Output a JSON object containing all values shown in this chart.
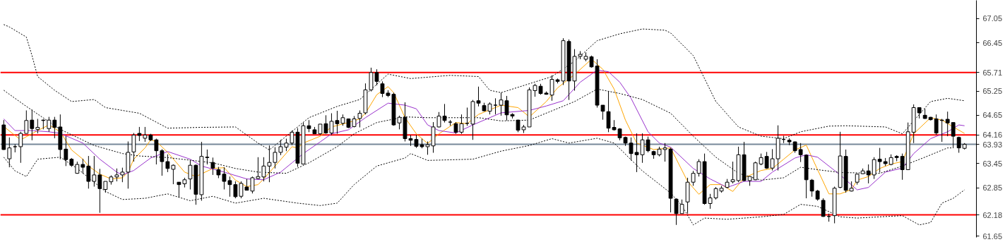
{
  "chart_data": {
    "type": "candlestick",
    "color": "#000000",
    "categories": [
      null,
      null,
      null,
      null,
      null,
      null,
      null,
      null,
      null,
      null,
      null,
      null,
      null,
      null,
      null,
      null,
      null,
      null,
      null,
      null,
      null,
      null,
      null,
      null,
      null,
      null,
      null,
      null,
      null,
      null,
      null,
      null,
      null,
      null,
      null,
      null,
      null,
      null,
      null,
      null,
      null,
      null,
      null,
      null,
      null,
      null,
      null,
      null,
      null,
      null,
      null,
      null,
      null,
      null,
      null,
      null,
      null,
      null,
      null,
      null,
      null,
      null,
      null,
      null,
      null,
      null,
      null,
      null,
      null,
      null,
      null,
      null,
      null,
      null,
      null,
      null,
      null,
      null,
      null,
      null,
      null,
      null,
      null,
      null,
      null,
      null,
      null,
      null,
      null,
      null,
      null,
      null,
      null,
      null,
      null,
      null,
      null,
      null,
      null,
      null,
      null,
      null,
      null,
      null,
      null,
      null,
      null,
      null,
      null,
      null,
      null,
      null,
      null,
      null,
      null,
      null,
      null,
      null,
      null,
      null,
      null,
      null,
      null,
      null,
      null,
      null,
      null,
      null,
      null,
      null,
      null,
      null,
      null,
      null,
      null,
      null,
      null,
      null,
      null,
      null,
      null,
      null,
      null,
      null,
      null,
      null,
      null,
      null,
      null,
      null,
      null,
      null,
      null,
      null,
      null,
      null,
      null,
      null,
      null,
      null,
      null,
      null,
      null,
      null,
      null,
      null,
      null,
      null,
      null,
      null,
      null
    ],
    "ohlc": [
      [
        64.41,
        64.53,
        63.79,
        63.8
      ],
      [
        63.57,
        64.1,
        63.36,
        63.84
      ],
      [
        63.87,
        63.93,
        63.73,
        63.87
      ],
      [
        63.87,
        64.24,
        63.47,
        64.2
      ],
      [
        64.2,
        64.77,
        64.2,
        64.52
      ],
      [
        64.53,
        64.79,
        64.03,
        64.32
      ],
      [
        64.3,
        64.56,
        64.2,
        64.35
      ],
      [
        64.53,
        64.55,
        64.3,
        64.52
      ],
      [
        64.32,
        64.61,
        64.24,
        64.53
      ],
      [
        64.53,
        64.61,
        64.08,
        64.35
      ],
      [
        64.36,
        64.67,
        63.56,
        63.8
      ],
      [
        63.81,
        64.13,
        63.39,
        63.55
      ],
      [
        63.56,
        63.59,
        63.37,
        63.41
      ],
      [
        63.21,
        63.5,
        63.2,
        63.43
      ],
      [
        63.43,
        63.57,
        63.2,
        63.36
      ],
      [
        63.39,
        63.64,
        62.83,
        63.01
      ],
      [
        63.01,
        63.64,
        62.88,
        63.17
      ],
      [
        63.17,
        63.32,
        62.23,
        62.83
      ],
      [
        62.81,
        63.01,
        62.73,
        63.01
      ],
      [
        63.0,
        63.16,
        62.93,
        63.12
      ],
      [
        63.12,
        63.33,
        63.01,
        63.17
      ],
      [
        63.17,
        63.35,
        62.99,
        63.24
      ],
      [
        63.24,
        64.0,
        62.83,
        63.73
      ],
      [
        63.74,
        64.21,
        63.5,
        64.16
      ],
      [
        64.2,
        64.36,
        64.01,
        64.15
      ],
      [
        64.08,
        64.36,
        63.99,
        64.16
      ],
      [
        64.16,
        64.19,
        64.01,
        64.04
      ],
      [
        64.04,
        64.07,
        63.43,
        63.77
      ],
      [
        63.77,
        63.81,
        63.15,
        63.5
      ],
      [
        63.5,
        63.68,
        63.24,
        63.33
      ],
      [
        63.31,
        63.43,
        62.94,
        63.41
      ],
      [
        62.99,
        62.99,
        62.61,
        62.93
      ],
      [
        62.95,
        63.1,
        62.86,
        63.05
      ],
      [
        63.07,
        63.53,
        62.81,
        63.41
      ],
      [
        63.41,
        63.43,
        62.43,
        62.69
      ],
      [
        62.68,
        63.99,
        62.53,
        63.63
      ],
      [
        63.61,
        63.8,
        63.43,
        63.6
      ],
      [
        63.48,
        63.6,
        63.17,
        63.34
      ],
      [
        63.3,
        63.37,
        63.09,
        63.17
      ],
      [
        63.19,
        63.36,
        62.81,
        63.01
      ],
      [
        63.03,
        63.13,
        62.63,
        62.93
      ],
      [
        62.93,
        63.01,
        62.59,
        62.63
      ],
      [
        62.64,
        63.01,
        62.59,
        62.96
      ],
      [
        62.87,
        63.07,
        62.79,
        62.79
      ],
      [
        62.77,
        63.13,
        62.71,
        63.1
      ],
      [
        63.08,
        63.61,
        63.07,
        63.13
      ],
      [
        63.12,
        63.61,
        63.01,
        63.39
      ],
      [
        63.39,
        63.9,
        62.99,
        63.48
      ],
      [
        63.48,
        63.86,
        63.33,
        63.73
      ],
      [
        63.73,
        64.04,
        63.66,
        63.87
      ],
      [
        63.86,
        64.07,
        63.76,
        63.96
      ],
      [
        63.96,
        64.27,
        63.91,
        64.23
      ],
      [
        64.23,
        64.33,
        63.37,
        63.46
      ],
      [
        63.44,
        64.47,
        63.43,
        64.39
      ],
      [
        64.39,
        64.53,
        64.23,
        64.32
      ],
      [
        64.29,
        64.36,
        64.19,
        64.19
      ],
      [
        64.19,
        64.43,
        64.17,
        64.43
      ],
      [
        64.44,
        64.65,
        64.19,
        64.21
      ],
      [
        64.21,
        64.7,
        64.16,
        64.5
      ],
      [
        64.52,
        64.76,
        64.19,
        64.44
      ],
      [
        64.45,
        64.67,
        64.39,
        64.59
      ],
      [
        64.56,
        64.57,
        64.33,
        64.35
      ],
      [
        64.37,
        64.63,
        64.35,
        64.56
      ],
      [
        64.57,
        64.77,
        64.35,
        64.7
      ],
      [
        64.71,
        65.44,
        64.67,
        65.28
      ],
      [
        65.28,
        65.83,
        65.24,
        65.71
      ],
      [
        65.71,
        65.79,
        65.39,
        65.49
      ],
      [
        65.43,
        65.49,
        65.1,
        65.19
      ],
      [
        65.2,
        65.27,
        65.1,
        65.14
      ],
      [
        65.17,
        65.21,
        64.39,
        64.41
      ],
      [
        64.46,
        64.64,
        64.3,
        64.6
      ],
      [
        64.6,
        64.97,
        64.0,
        64.07
      ],
      [
        64.07,
        64.16,
        63.89,
        64.03
      ],
      [
        64.05,
        64.16,
        63.84,
        63.88
      ],
      [
        63.92,
        64.07,
        63.83,
        63.87
      ],
      [
        63.87,
        64.0,
        63.67,
        63.92
      ],
      [
        63.89,
        64.48,
        63.72,
        64.36
      ],
      [
        64.36,
        64.73,
        64.35,
        64.63
      ],
      [
        64.63,
        64.93,
        64.47,
        64.52
      ],
      [
        64.48,
        64.53,
        64.39,
        64.48
      ],
      [
        64.44,
        64.48,
        64.19,
        64.23
      ],
      [
        64.23,
        64.67,
        64.19,
        64.44
      ],
      [
        64.45,
        64.84,
        64.39,
        64.45
      ],
      [
        64.43,
        65.03,
        64.04,
        64.99
      ],
      [
        65.01,
        65.36,
        64.87,
        64.95
      ],
      [
        64.89,
        64.96,
        64.75,
        64.76
      ],
      [
        64.75,
        64.97,
        64.67,
        64.93
      ],
      [
        64.9,
        65.07,
        64.67,
        64.9
      ],
      [
        64.9,
        65.21,
        64.64,
        65.03
      ],
      [
        65.01,
        65.13,
        64.52,
        64.66
      ],
      [
        64.67,
        64.7,
        64.57,
        64.63
      ],
      [
        64.53,
        64.54,
        64.23,
        64.28
      ],
      [
        64.29,
        64.41,
        64.21,
        64.36
      ],
      [
        64.36,
        65.34,
        64.36,
        65.28
      ],
      [
        65.26,
        65.43,
        65.11,
        65.39
      ],
      [
        65.37,
        65.43,
        65.16,
        65.19
      ],
      [
        65.2,
        65.24,
        65.16,
        65.17
      ],
      [
        65.15,
        65.64,
        65.01,
        65.54
      ],
      [
        65.53,
        65.56,
        65.44,
        65.49
      ],
      [
        65.5,
        66.56,
        65.4,
        66.5
      ],
      [
        66.48,
        66.53,
        65.03,
        65.5
      ],
      [
        65.5,
        66.29,
        65.26,
        66.11
      ],
      [
        66.11,
        66.24,
        66.04,
        66.16
      ],
      [
        66.04,
        66.21,
        65.99,
        66.11
      ],
      [
        66.1,
        66.13,
        65.83,
        65.85
      ],
      [
        65.87,
        66.04,
        64.84,
        64.9
      ],
      [
        64.9,
        64.9,
        64.54,
        64.75
      ],
      [
        64.74,
        65.24,
        64.23,
        64.33
      ],
      [
        64.35,
        64.53,
        64.27,
        64.29
      ],
      [
        64.31,
        64.33,
        64.03,
        64.09
      ],
      [
        64.1,
        64.12,
        63.89,
        63.96
      ],
      [
        63.96,
        64.1,
        63.53,
        63.7
      ],
      [
        63.73,
        64.2,
        63.24,
        63.67
      ],
      [
        63.67,
        64.2,
        63.47,
        64.04
      ],
      [
        64.04,
        64.12,
        63.73,
        63.77
      ],
      [
        63.75,
        63.77,
        63.57,
        63.67
      ],
      [
        63.67,
        63.87,
        63.63,
        63.81
      ],
      [
        63.8,
        63.96,
        63.5,
        63.84
      ],
      [
        63.81,
        63.84,
        62.24,
        62.59
      ],
      [
        62.57,
        62.59,
        61.93,
        62.21
      ],
      [
        62.21,
        62.56,
        62.21,
        62.44
      ],
      [
        62.5,
        63.1,
        62.21,
        62.99
      ],
      [
        62.99,
        63.27,
        62.9,
        63.21
      ],
      [
        63.21,
        63.56,
        63.13,
        63.5
      ],
      [
        63.5,
        63.7,
        62.43,
        62.46
      ],
      [
        62.46,
        62.7,
        62.33,
        62.6
      ],
      [
        62.6,
        62.87,
        62.56,
        62.83
      ],
      [
        62.77,
        62.9,
        62.73,
        62.84
      ],
      [
        62.86,
        63.07,
        62.84,
        62.99
      ],
      [
        63.0,
        63.5,
        62.96,
        63.05
      ],
      [
        63.03,
        63.87,
        62.99,
        63.67
      ],
      [
        63.67,
        63.99,
        63.01,
        63.03
      ],
      [
        63.03,
        63.13,
        62.9,
        63.13
      ],
      [
        63.05,
        63.5,
        63.04,
        63.47
      ],
      [
        63.44,
        63.7,
        63.41,
        63.6
      ],
      [
        63.63,
        63.74,
        63.32,
        63.34
      ],
      [
        63.34,
        63.81,
        63.28,
        63.57
      ],
      [
        63.57,
        64.4,
        63.28,
        64.08
      ],
      [
        64.05,
        64.14,
        63.96,
        64.05
      ],
      [
        64.03,
        64.08,
        63.91,
        63.99
      ],
      [
        63.99,
        64.0,
        63.72,
        63.77
      ],
      [
        63.8,
        63.96,
        63.49,
        63.67
      ],
      [
        63.66,
        63.68,
        62.59,
        63.05
      ],
      [
        63.04,
        63.07,
        62.63,
        62.77
      ],
      [
        62.77,
        62.8,
        62.53,
        62.57
      ],
      [
        62.54,
        62.59,
        62.13,
        62.14
      ],
      [
        62.14,
        62.21,
        62.01,
        62.14
      ],
      [
        62.16,
        62.88,
        61.97,
        62.84
      ],
      [
        62.86,
        64.24,
        62.84,
        63.64
      ],
      [
        63.63,
        63.8,
        62.73,
        62.79
      ],
      [
        62.77,
        63.01,
        62.76,
        62.84
      ],
      [
        62.99,
        63.2,
        62.93,
        63.19
      ],
      [
        63.2,
        63.33,
        63.19,
        63.27
      ],
      [
        63.27,
        63.43,
        62.96,
        63.17
      ],
      [
        63.17,
        63.61,
        63.07,
        63.55
      ],
      [
        63.56,
        63.84,
        63.23,
        63.5
      ],
      [
        63.5,
        63.59,
        63.39,
        63.45
      ],
      [
        63.43,
        63.68,
        63.41,
        63.6
      ],
      [
        63.63,
        63.66,
        63.51,
        63.6
      ],
      [
        63.63,
        63.7,
        63.05,
        63.3
      ],
      [
        63.3,
        64.47,
        63.3,
        64.24
      ],
      [
        64.23,
        64.92,
        63.96,
        64.84
      ],
      [
        64.84,
        64.84,
        64.57,
        64.71
      ],
      [
        64.65,
        64.81,
        64.56,
        64.57
      ],
      [
        64.6,
        64.61,
        64.52,
        64.54
      ],
      [
        64.56,
        64.67,
        64.16,
        64.21
      ],
      [
        64.53,
        64.56,
        63.99,
        64.52
      ],
      [
        64.55,
        64.74,
        64.13,
        64.46
      ],
      [
        64.47,
        64.47,
        63.84,
        64.13
      ],
      [
        64.1,
        64.12,
        63.72,
        63.84
      ],
      [
        63.83,
        63.96,
        63.8,
        63.93
      ]
    ],
    "series": [
      {
        "type": "line",
        "color": "#ffa500",
        "line_style": "solid",
        "values": [
          64.37,
          null,
          null,
          64.04,
          null,
          null,
          64.27,
          null,
          64.41,
          null,
          64.24,
          null,
          63.79,
          null,
          63.56,
          63.39,
          null,
          63.19,
          null,
          63.07,
          null,
          63.1,
          63.24,
          63.56,
          null,
          63.84,
          64.04,
          64.0,
          null,
          63.73,
          null,
          null,
          63.24,
          null,
          63.13,
          null,
          null,
          63.33,
          null,
          63.35,
          null,
          63.04,
          null,
          62.88,
          null,
          62.93,
          63.07,
          null,
          63.39,
          null,
          null,
          63.87,
          63.84,
          63.96,
          null,
          null,
          64.13,
          null,
          64.36,
          null,
          null,
          64.47,
          null,
          64.56,
          64.7,
          null,
          65.16,
          null,
          65.36,
          65.21,
          null,
          64.59,
          null,
          64.19,
          null,
          63.95,
          null,
          64.19,
          null,
          null,
          64.47,
          null,
          64.44,
          null,
          64.67,
          null,
          null,
          null,
          64.9,
          null,
          null,
          64.84,
          null,
          64.61,
          null,
          null,
          64.99,
          null,
          65.33,
          null,
          null,
          65.66,
          null,
          null,
          66.04,
          null,
          65.79,
          null,
          65.3,
          null,
          64.53,
          null,
          63.96,
          null,
          null,
          63.8,
          null,
          null,
          63.84,
          null,
          null,
          63.01,
          null,
          62.69,
          null,
          62.93,
          null,
          62.93,
          null,
          62.76,
          null,
          63.1,
          null,
          null,
          63.28,
          null,
          63.33,
          null,
          63.56,
          null,
          63.79,
          null,
          63.91,
          null,
          63.3,
          null,
          62.7,
          null,
          62.7,
          null,
          62.81,
          63.04,
          null,
          63.13,
          null,
          63.33,
          null,
          63.44,
          null,
          63.5,
          null,
          64.19,
          null,
          null,
          64.59,
          null,
          64.53,
          null,
          64.36,
          null,
          64.2
        ]
      },
      {
        "type": "line",
        "color": "#9932cc",
        "line_style": "solid",
        "values": [
          64.56,
          null,
          64.27,
          null,
          null,
          64.27,
          null,
          null,
          64.24,
          null,
          64.2,
          null,
          null,
          null,
          63.96,
          null,
          null,
          63.56,
          null,
          null,
          63.24,
          63.17,
          null,
          63.28,
          null,
          null,
          63.59,
          null,
          null,
          63.75,
          null,
          null,
          null,
          63.56,
          null,
          63.39,
          null,
          null,
          null,
          63.24,
          null,
          null,
          null,
          63.07,
          null,
          null,
          63.05,
          null,
          null,
          63.24,
          null,
          63.47,
          null,
          63.7,
          null,
          null,
          63.99,
          null,
          64.19,
          null,
          null,
          64.29,
          null,
          null,
          64.59,
          null,
          null,
          null,
          64.95,
          null,
          null,
          64.9,
          null,
          64.81,
          null,
          64.41,
          null,
          64.27,
          null,
          null,
          64.21,
          null,
          null,
          64.41,
          null,
          null,
          null,
          null,
          64.71,
          null,
          null,
          null,
          null,
          64.77,
          null,
          null,
          64.88,
          null,
          null,
          65.01,
          null,
          null,
          65.47,
          null,
          null,
          65.77,
          null,
          65.73,
          null,
          65.47,
          null,
          65.07,
          null,
          null,
          64.24,
          null,
          63.96,
          null,
          63.86,
          null,
          null,
          null,
          63.33,
          null,
          null,
          63.07,
          null,
          null,
          62.86,
          null,
          null,
          63.01,
          null,
          null,
          63.01,
          null,
          63.24,
          null,
          null,
          null,
          63.59,
          null,
          63.67,
          null,
          63.61,
          null,
          null,
          null,
          63.17,
          null,
          null,
          62.8,
          null,
          62.86,
          null,
          null,
          63.24,
          null,
          null,
          63.34,
          null,
          63.7,
          null,
          null,
          64.07,
          null,
          null,
          64.24,
          null,
          64.41,
          64.39
        ]
      },
      {
        "type": "line",
        "color": "#000000",
        "line_style": "dotted",
        "values": [
          66.9,
          66.84,
          null,
          null,
          66.59,
          66.13,
          65.61,
          null,
          null,
          65.27,
          null,
          null,
          64.99,
          null,
          null,
          null,
          65.04,
          null,
          64.84,
          null,
          null,
          null,
          null,
          null,
          64.7,
          null,
          null,
          null,
          null,
          64.33,
          null,
          null,
          null,
          null,
          null,
          64.35,
          null,
          null,
          null,
          null,
          null,
          64.36,
          null,
          null,
          null,
          63.96,
          null,
          63.79,
          null,
          null,
          null,
          null,
          null,
          null,
          64.59,
          null,
          null,
          null,
          null,
          64.87,
          null,
          null,
          null,
          65.04,
          null,
          null,
          null,
          null,
          65.67,
          null,
          null,
          null,
          65.56,
          null,
          null,
          null,
          null,
          null,
          null,
          65.64,
          null,
          null,
          null,
          null,
          65.61,
          null,
          65.27,
          null,
          65.21,
          null,
          null,
          null,
          null,
          null,
          null,
          null,
          null,
          65.61,
          null,
          null,
          null,
          65.99,
          null,
          null,
          null,
          66.5,
          null,
          null,
          null,
          66.67,
          null,
          null,
          null,
          66.79,
          null,
          null,
          null,
          66.76,
          66.69,
          null,
          null,
          null,
          66.13,
          null,
          null,
          null,
          64.99,
          null,
          null,
          null,
          64.36,
          null,
          null,
          null,
          64.13,
          null,
          null,
          null,
          64.07,
          null,
          null,
          64.24,
          null,
          null,
          null,
          null,
          64.38,
          null,
          null,
          64.39,
          null,
          null,
          null,
          null,
          null,
          null,
          64.36,
          null,
          null,
          64.19,
          null,
          null,
          null,
          null,
          64.99,
          null,
          null,
          65.07,
          null,
          null,
          65.01
        ]
      },
      {
        "type": "line",
        "color": "#000000",
        "line_style": "dotted",
        "values": [
          65.27,
          null,
          null,
          null,
          64.87,
          null,
          null,
          null,
          null,
          null,
          64.3,
          null,
          null,
          null,
          null,
          null,
          63.9,
          null,
          null,
          null,
          null,
          63.7,
          null,
          null,
          63.64,
          null,
          null,
          null,
          null,
          63.6,
          null,
          null,
          null,
          null,
          null,
          null,
          null,
          63.47,
          null,
          null,
          null,
          63.33,
          null,
          null,
          null,
          63.24,
          null,
          null,
          null,
          null,
          63.21,
          null,
          null,
          null,
          63.47,
          null,
          null,
          null,
          null,
          63.87,
          null,
          null,
          64.19,
          null,
          null,
          null,
          64.47,
          null,
          null,
          null,
          null,
          64.61,
          null,
          null,
          null,
          64.59,
          null,
          null,
          null,
          64.59,
          null,
          null,
          null,
          null,
          64.59,
          null,
          null,
          null,
          64.51,
          null,
          null,
          null,
          null,
          64.53,
          null,
          null,
          null,
          64.76,
          null,
          null,
          null,
          64.99,
          null,
          null,
          null,
          65.3,
          null,
          null,
          null,
          65.19,
          null,
          null,
          null,
          65.04,
          null,
          null,
          null,
          null,
          64.7,
          null,
          null,
          null,
          64.13,
          null,
          null,
          null,
          63.61,
          null,
          null,
          null,
          63.21,
          null,
          null,
          null,
          63.04,
          null,
          null,
          null,
          63.1,
          null,
          null,
          63.36,
          null,
          null,
          63.3,
          null,
          null,
          null,
          63.23,
          null,
          null,
          null,
          null,
          null,
          null,
          63.21,
          null,
          null,
          null,
          63.39,
          null,
          null,
          null,
          63.61,
          null,
          null,
          null,
          63.84,
          63.84,
          null,
          null
        ]
      },
      {
        "type": "line",
        "color": "#000000",
        "line_style": "dotted",
        "values": [
          63.61,
          null,
          63.27,
          null,
          63.13,
          null,
          63.56,
          null,
          null,
          null,
          63.61,
          null,
          null,
          63.33,
          null,
          null,
          null,
          null,
          62.76,
          null,
          null,
          62.56,
          null,
          null,
          null,
          62.59,
          null,
          null,
          null,
          62.7,
          null,
          null,
          null,
          62.53,
          null,
          null,
          null,
          62.64,
          null,
          null,
          null,
          62.47,
          null,
          null,
          null,
          null,
          62.59,
          null,
          null,
          null,
          null,
          null,
          62.47,
          null,
          null,
          null,
          62.41,
          null,
          null,
          62.47,
          null,
          null,
          62.93,
          null,
          null,
          null,
          63.39,
          null,
          null,
          null,
          null,
          63.59,
          63.7,
          null,
          null,
          63.53,
          null,
          null,
          null,
          null,
          null,
          null,
          null,
          63.56,
          null,
          null,
          null,
          null,
          63.76,
          null,
          null,
          null,
          null,
          63.9,
          null,
          null,
          null,
          64.07,
          null,
          null,
          63.96,
          null,
          null,
          null,
          null,
          64.08,
          null,
          null,
          63.96,
          null,
          null,
          null,
          null,
          63.27,
          null,
          null,
          null,
          null,
          62.72,
          null,
          62.41,
          null,
          61.93,
          null,
          62.1,
          null,
          null,
          null,
          62.07,
          null,
          null,
          null,
          null,
          null,
          62.13,
          null,
          null,
          null,
          62.19,
          null,
          null,
          62.44,
          null,
          null,
          62.39,
          null,
          null,
          null,
          62.13,
          null,
          null,
          62.1,
          null,
          null,
          null,
          null,
          null,
          null,
          null,
          62.16,
          null,
          null,
          61.93,
          null,
          61.99,
          null,
          62.47,
          null,
          62.59,
          null,
          62.8
        ]
      }
    ],
    "ylim": [
      61.62,
      67.5
    ],
    "yticks": [
      67.05,
      66.45,
      65.25,
      64.65,
      63.45,
      62.85,
      61.65
    ],
    "tick_labels": "y",
    "grid": false,
    "ref_lines": [
      {
        "axis": "y",
        "value": 65.71,
        "label": "65.71",
        "color": "#ff0000"
      },
      {
        "axis": "y",
        "value": 64.16,
        "label": "64.16",
        "color": "#ff0000"
      },
      {
        "axis": "y",
        "value": 62.18,
        "label": "62.18",
        "color": "#ff0000"
      },
      {
        "axis": "y",
        "value": 63.93,
        "label": "63.93",
        "color": "#778899"
      }
    ]
  }
}
